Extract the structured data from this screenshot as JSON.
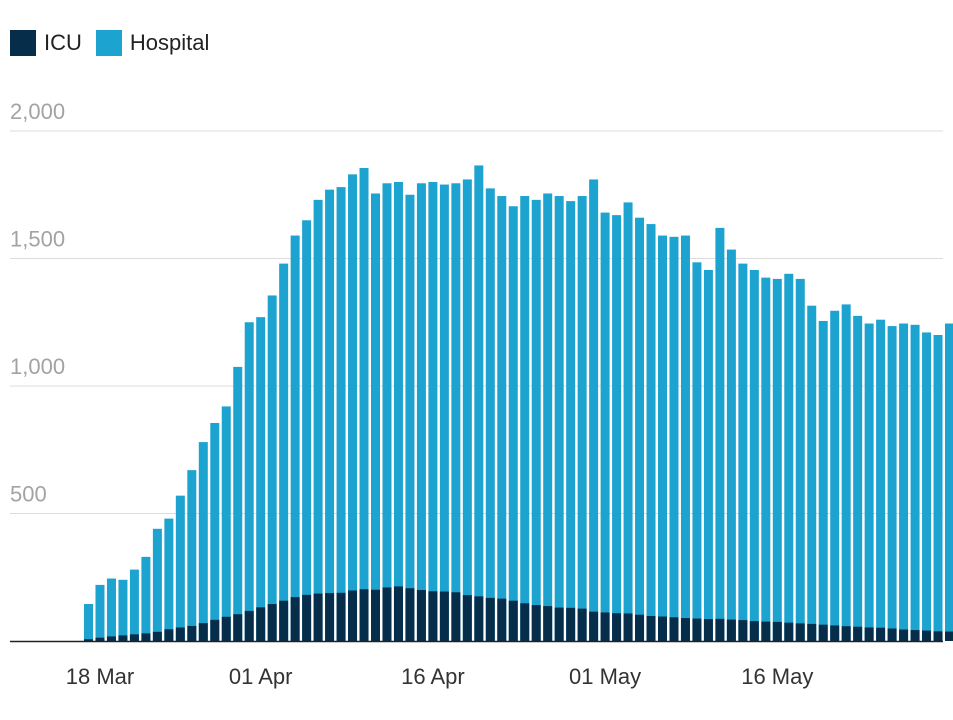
{
  "chart_data": {
    "type": "bar",
    "stacked": true,
    "x": [
      "2020-03-17",
      "2020-03-18",
      "2020-03-19",
      "2020-03-20",
      "2020-03-21",
      "2020-03-22",
      "2020-03-23",
      "2020-03-24",
      "2020-03-25",
      "2020-03-26",
      "2020-03-27",
      "2020-03-28",
      "2020-03-29",
      "2020-03-30",
      "2020-03-31",
      "2020-04-01",
      "2020-04-02",
      "2020-04-03",
      "2020-04-04",
      "2020-04-05",
      "2020-04-06",
      "2020-04-07",
      "2020-04-08",
      "2020-04-09",
      "2020-04-10",
      "2020-04-11",
      "2020-04-12",
      "2020-04-13",
      "2020-04-14",
      "2020-04-15",
      "2020-04-16",
      "2020-04-17",
      "2020-04-18",
      "2020-04-19",
      "2020-04-20",
      "2020-04-21",
      "2020-04-22",
      "2020-04-23",
      "2020-04-24",
      "2020-04-25",
      "2020-04-26",
      "2020-04-27",
      "2020-04-28",
      "2020-04-29",
      "2020-04-30",
      "2020-05-01",
      "2020-05-02",
      "2020-05-03",
      "2020-05-04",
      "2020-05-05",
      "2020-05-06",
      "2020-05-07",
      "2020-05-08",
      "2020-05-09",
      "2020-05-10",
      "2020-05-11",
      "2020-05-12",
      "2020-05-13",
      "2020-05-14",
      "2020-05-15",
      "2020-05-16",
      "2020-05-17",
      "2020-05-18",
      "2020-05-19",
      "2020-05-20",
      "2020-05-21",
      "2020-05-22",
      "2020-05-23",
      "2020-05-24",
      "2020-05-25",
      "2020-05-26",
      "2020-05-27",
      "2020-05-28",
      "2020-05-29",
      "2020-05-30",
      "2020-05-31",
      "2020-06-01"
    ],
    "series": [
      {
        "name": "ICU",
        "color": "#062e4a",
        "values": [
          7,
          13,
          18,
          22,
          26,
          30,
          36,
          46,
          53,
          59,
          70,
          83,
          95,
          105,
          118,
          132,
          145,
          158,
          172,
          181,
          186,
          188,
          189,
          198,
          203,
          201,
          210,
          214,
          207,
          200,
          195,
          194,
          191,
          180,
          175,
          169,
          166,
          158,
          148,
          141,
          137,
          131,
          130,
          127,
          115,
          112,
          109,
          108,
          103,
          98,
          96,
          93,
          90,
          88,
          86,
          87,
          84,
          82,
          78,
          76,
          75,
          72,
          69,
          67,
          64,
          61,
          58,
          56,
          53,
          52,
          49,
          45,
          43,
          41,
          38,
          37,
          37
        ]
      },
      {
        "name": "Hospital",
        "color": "#1da3d0",
        "values": [
          145,
          220,
          245,
          240,
          280,
          330,
          440,
          480,
          570,
          670,
          780,
          855,
          920,
          1075,
          1250,
          1270,
          1355,
          1480,
          1590,
          1650,
          1730,
          1770,
          1780,
          1830,
          1855,
          1755,
          1795,
          1800,
          1750,
          1795,
          1800,
          1790,
          1795,
          1810,
          1865,
          1775,
          1745,
          1705,
          1745,
          1730,
          1755,
          1745,
          1725,
          1745,
          1810,
          1680,
          1670,
          1720,
          1660,
          1635,
          1590,
          1585,
          1590,
          1485,
          1455,
          1620,
          1535,
          1480,
          1455,
          1425,
          1420,
          1440,
          1420,
          1315,
          1255,
          1295,
          1320,
          1275,
          1245,
          1260,
          1235,
          1245,
          1240,
          1210,
          1200,
          1245,
          1230
        ]
      }
    ],
    "ylim": [
      0,
      2000
    ],
    "yticks": [
      "500",
      "1,000",
      "1,500",
      "2,000"
    ],
    "ytick_values": [
      500,
      1000,
      1500,
      2000
    ],
    "xticks": [
      {
        "date": "2020-03-18",
        "label": "18 Mar"
      },
      {
        "date": "2020-04-01",
        "label": "01 Apr"
      },
      {
        "date": "2020-04-16",
        "label": "16 Apr"
      },
      {
        "date": "2020-05-01",
        "label": "01 May"
      },
      {
        "date": "2020-05-16",
        "label": "16 May"
      }
    ],
    "legend": "top-left",
    "grid": true
  }
}
